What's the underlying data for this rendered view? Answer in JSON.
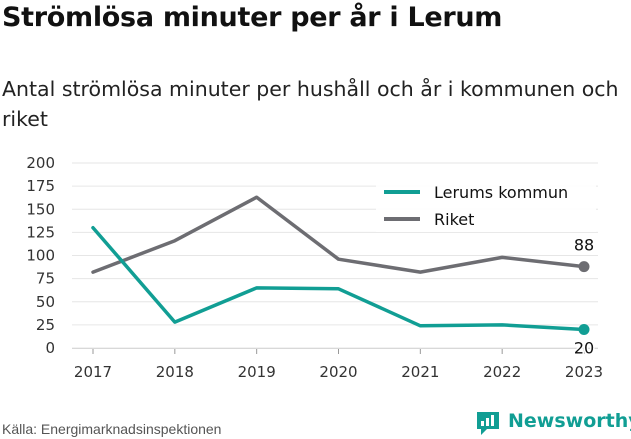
{
  "chart_data": {
    "type": "line",
    "title": "Strömlösa minuter per år i Lerum",
    "subtitle": "Antal strömlösa minuter per hushåll och år i kommunen och riket",
    "x": [
      2017,
      2018,
      2019,
      2020,
      2021,
      2022,
      2023
    ],
    "ylim": [
      0,
      200
    ],
    "yticks": [
      0,
      25,
      50,
      75,
      100,
      125,
      150,
      175,
      200
    ],
    "grid": true,
    "legend_position": "top-right",
    "series": [
      {
        "name": "Lerums kommun",
        "color": "#119e94",
        "values": [
          130,
          28,
          65,
          64,
          24,
          25,
          20
        ]
      },
      {
        "name": "Riket",
        "color": "#6d6d72",
        "values": [
          82,
          116,
          163,
          96,
          82,
          98,
          88
        ]
      }
    ],
    "end_labels": [
      "20",
      "88"
    ]
  },
  "source": "Källa: Energimarknadsinspektionen",
  "logo": {
    "text": "Newsworthy",
    "color": "#119e94"
  }
}
